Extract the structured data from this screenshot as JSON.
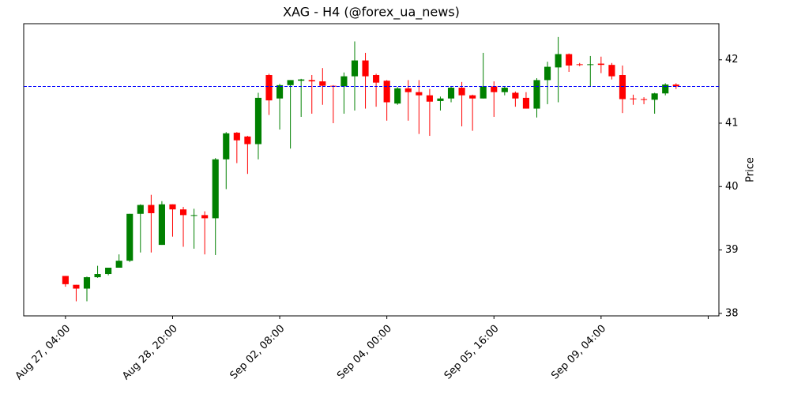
{
  "chart_data": {
    "type": "candlestick",
    "title": "XAG - H4 (@forex_ua_news)",
    "y_label": "Price",
    "up_color": "green",
    "down_color": "red",
    "open": [
      38.59,
      38.45,
      38.39,
      38.57,
      38.62,
      38.72,
      38.83,
      39.57,
      39.71,
      39.08,
      39.72,
      39.64,
      39.54,
      39.55,
      39.5,
      40.43,
      40.85,
      40.79,
      40.67,
      41.76,
      41.39,
      41.6,
      41.67,
      41.68,
      41.66,
      41.59,
      41.58,
      41.74,
      41.99,
      41.76,
      41.67,
      41.31,
      41.55,
      41.49,
      41.44,
      41.35,
      41.39,
      41.56,
      41.44,
      41.39,
      41.58,
      41.49,
      41.48,
      41.4,
      41.23,
      41.68,
      41.88,
      42.09,
      41.93,
      41.92,
      41.94,
      41.92,
      41.76,
      41.39,
      41.38,
      41.37,
      41.47,
      41.61
    ],
    "high": [
      38.59,
      38.45,
      38.58,
      38.75,
      38.72,
      38.93,
      39.57,
      39.72,
      39.87,
      39.77,
      39.72,
      39.68,
      39.65,
      39.61,
      40.45,
      40.86,
      40.86,
      40.8,
      41.48,
      41.78,
      41.62,
      41.68,
      41.7,
      41.76,
      41.87,
      41.6,
      41.8,
      42.29,
      42.11,
      41.78,
      41.68,
      41.57,
      41.68,
      41.68,
      41.54,
      41.42,
      41.58,
      41.65,
      41.45,
      42.11,
      41.66,
      41.58,
      41.5,
      41.49,
      41.71,
      41.97,
      42.36,
      42.1,
      41.95,
      42.06,
      42.05,
      41.95,
      41.91,
      41.45,
      41.41,
      41.48,
      41.63,
      41.63
    ],
    "low": [
      38.42,
      38.19,
      38.19,
      38.56,
      38.6,
      38.72,
      38.81,
      38.96,
      38.96,
      39.08,
      39.21,
      39.05,
      39.02,
      38.93,
      38.92,
      39.96,
      40.37,
      40.2,
      40.43,
      41.13,
      40.9,
      40.6,
      41.1,
      41.15,
      41.29,
      41.0,
      41.15,
      41.2,
      41.23,
      41.26,
      41.04,
      41.29,
      41.04,
      40.83,
      40.8,
      41.2,
      41.33,
      40.95,
      40.88,
      41.39,
      41.1,
      41.44,
      41.26,
      41.23,
      41.09,
      41.3,
      41.33,
      41.81,
      41.9,
      41.58,
      41.79,
      41.69,
      41.16,
      41.29,
      41.3,
      41.15,
      41.44,
      41.54
    ],
    "close": [
      38.46,
      38.39,
      38.57,
      38.62,
      38.72,
      38.83,
      39.57,
      39.71,
      39.58,
      39.72,
      39.64,
      39.55,
      39.55,
      39.5,
      40.43,
      40.84,
      40.73,
      40.67,
      41.4,
      41.36,
      41.6,
      41.68,
      41.69,
      41.66,
      41.59,
      41.58,
      41.74,
      41.99,
      41.74,
      41.64,
      41.33,
      41.55,
      41.49,
      41.44,
      41.34,
      41.39,
      41.56,
      41.44,
      41.39,
      41.58,
      41.49,
      41.56,
      41.39,
      41.23,
      41.68,
      41.89,
      42.09,
      41.91,
      41.92,
      41.93,
      41.92,
      41.74,
      41.38,
      41.38,
      41.37,
      41.47,
      41.61,
      41.58
    ],
    "hline": {
      "value": 41.58,
      "color": "blue"
    },
    "xlim": [
      -3.9,
      61.0
    ],
    "xticks": [
      {
        "value": 0,
        "label": "Aug 27, 04:00"
      },
      {
        "value": 10,
        "label": "Aug 28, 20:00"
      },
      {
        "value": 20,
        "label": "Sep 02, 08:00"
      },
      {
        "value": 30,
        "label": "Sep 04, 00:00"
      },
      {
        "value": 40,
        "label": "Sep 05, 16:00"
      },
      {
        "value": 50,
        "label": "Sep 09, 04:00"
      },
      {
        "value": 60,
        "label": null
      }
    ],
    "ylim": [
      37.96,
      42.57
    ],
    "yticks": [
      38,
      39,
      40,
      41,
      42
    ]
  }
}
